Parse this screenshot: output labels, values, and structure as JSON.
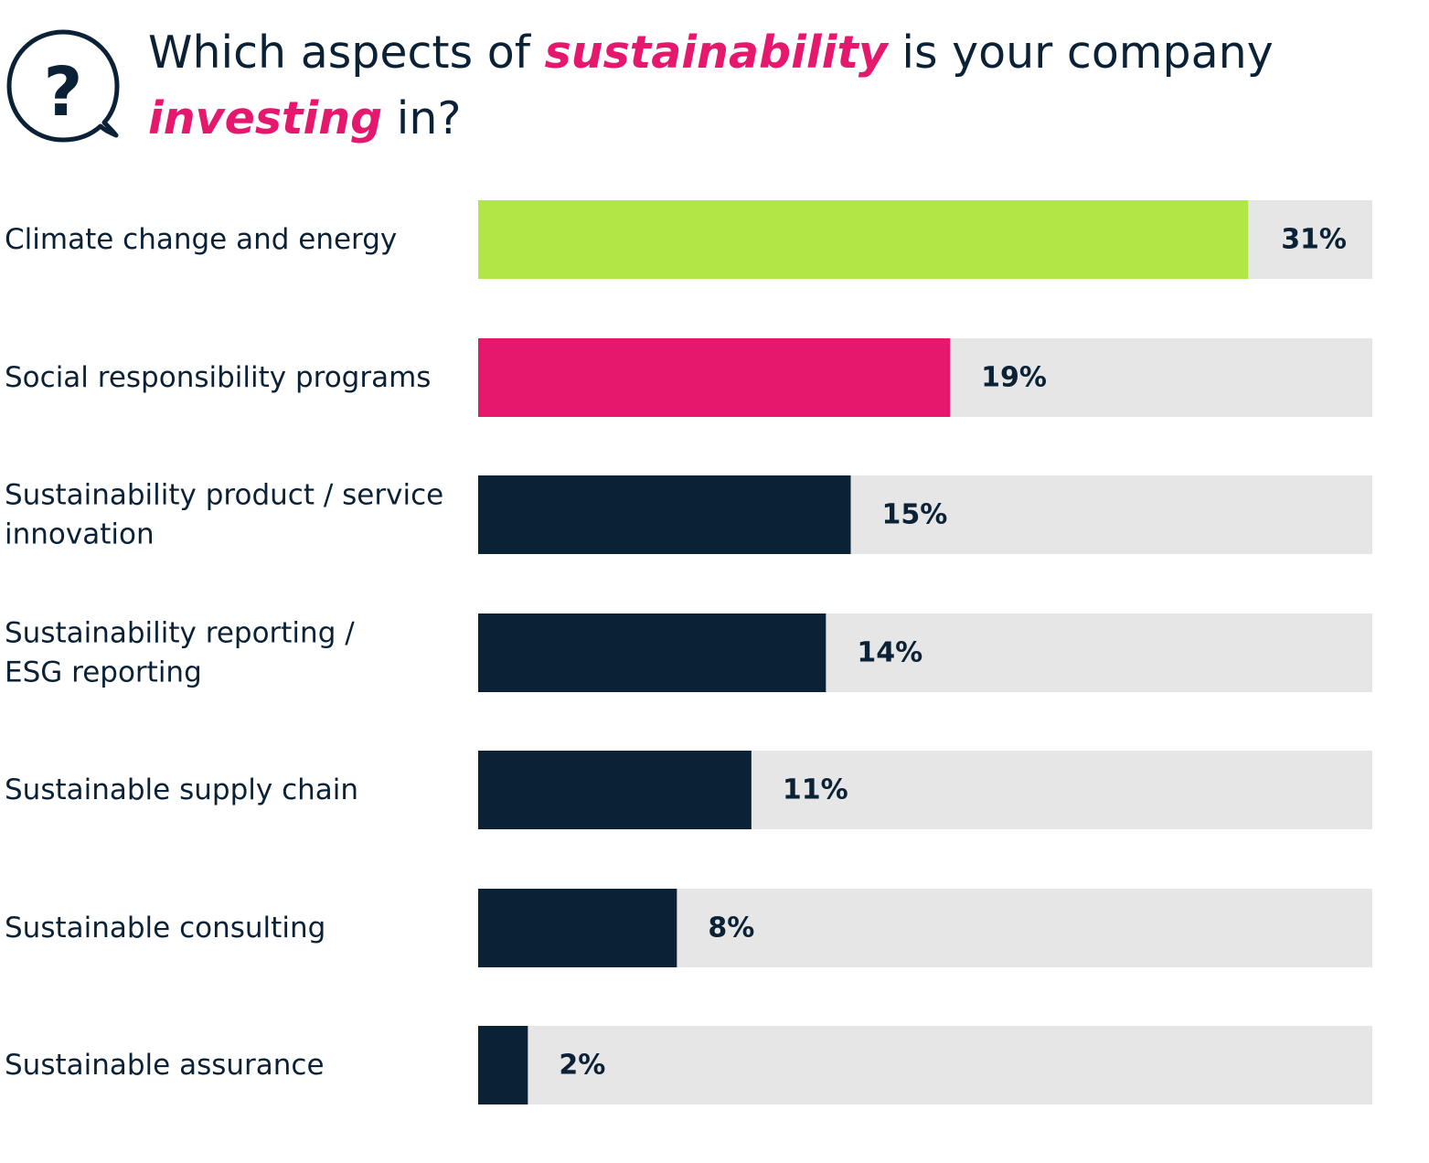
{
  "header": {
    "title_parts": {
      "p1": "Which aspects of ",
      "p2": "sustainability",
      "p3": " is your company ",
      "p4": "investing",
      "p5": " in?"
    },
    "icon": "question-speech-bubble-icon"
  },
  "colors": {
    "accent_green": "#b0e646",
    "accent_pink": "#e5186e",
    "navy": "#0b2136",
    "track": "#e6e6e6"
  },
  "chart_data": {
    "type": "bar",
    "orientation": "horizontal",
    "title": "Which aspects of sustainability is your company investing in?",
    "categories": [
      [
        "Climate change and energy"
      ],
      [
        "Social responsibility programs"
      ],
      [
        "Sustainability product / service",
        "innovation"
      ],
      [
        "Sustainability reporting /",
        "ESG reporting"
      ],
      [
        "Sustainable supply chain"
      ],
      [
        "Sustainable consulting"
      ],
      [
        "Sustainable assurance"
      ]
    ],
    "values": [
      31,
      19,
      15,
      14,
      11,
      8,
      2
    ],
    "value_labels": [
      "31%",
      "19%",
      "15%",
      "14%",
      "11%",
      "8%",
      "2%"
    ],
    "bar_colors": [
      "#b0e646",
      "#e5186e",
      "#0b2136",
      "#0b2136",
      "#0b2136",
      "#0b2136",
      "#0b2136"
    ],
    "xlim": [
      0,
      36
    ],
    "xlabel": "",
    "ylabel": "",
    "grid": false,
    "legend": "none"
  }
}
